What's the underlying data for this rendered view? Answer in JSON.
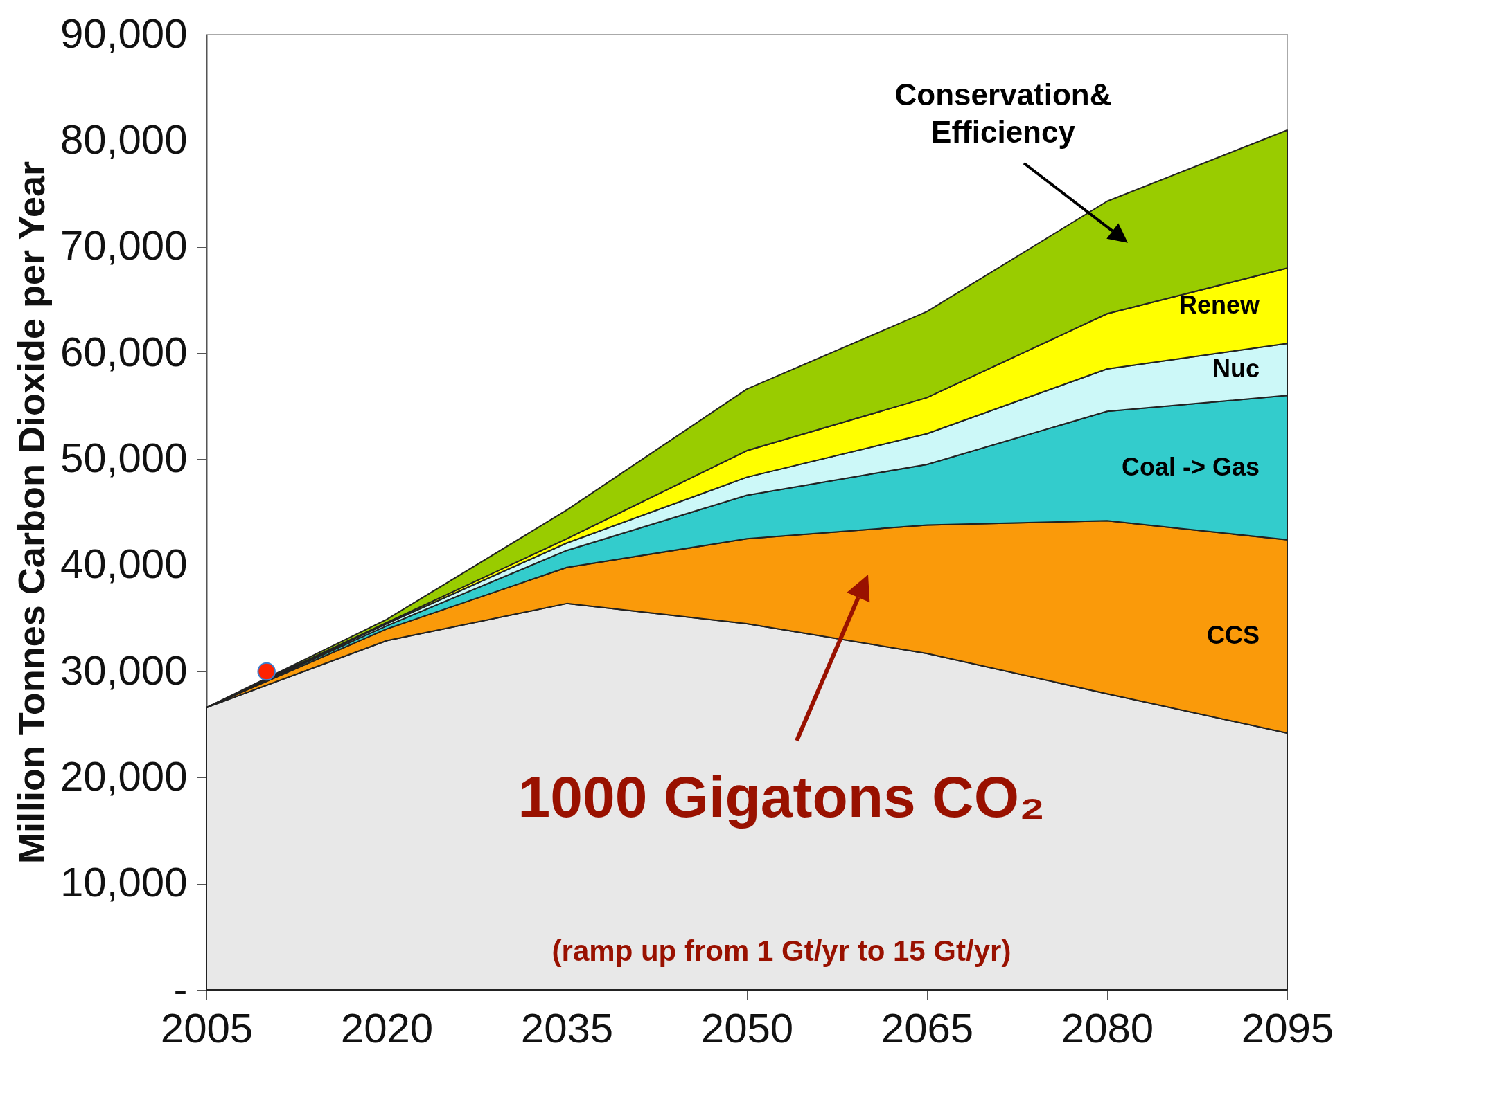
{
  "chart_data": {
    "type": "area",
    "stacked": true,
    "ylabel": "Million Tonnes Carbon Dioxide per Year",
    "x": [
      2005,
      2020,
      2035,
      2050,
      2065,
      2080,
      2095
    ],
    "xlim": [
      2005,
      2095
    ],
    "xticks": [
      2005,
      2020,
      2035,
      2050,
      2065,
      2080,
      2095
    ],
    "ylim": [
      0,
      90000
    ],
    "yticks": [
      {
        "value": 0,
        "label": "-"
      },
      {
        "value": 10000,
        "label": "10,000"
      },
      {
        "value": 20000,
        "label": "20,000"
      },
      {
        "value": 30000,
        "label": "30,000"
      },
      {
        "value": 40000,
        "label": "40,000"
      },
      {
        "value": 50000,
        "label": "50,000"
      },
      {
        "value": 60000,
        "label": "60,000"
      },
      {
        "value": 70000,
        "label": "70,000"
      },
      {
        "value": 80000,
        "label": "80,000"
      },
      {
        "value": 90000,
        "label": "90,000"
      }
    ],
    "grid": false,
    "legend": false,
    "series": [
      {
        "color": "#e8e8e8",
        "values": [
          26600,
          32900,
          36400,
          34500,
          31700,
          27900,
          24200
        ]
      },
      {
        "name": "CCS",
        "color": "#fa9a0a",
        "values": [
          0,
          1100,
          3400,
          8000,
          12100,
          16300,
          18200
        ]
      },
      {
        "name": "Coal -> Gas",
        "color": "#33cccc",
        "values": [
          0,
          300,
          1600,
          4100,
          5700,
          10300,
          13600
        ]
      },
      {
        "name": "Nuc",
        "color": "#ccf8f8",
        "values": [
          0,
          200,
          700,
          1700,
          2900,
          4000,
          4900
        ]
      },
      {
        "name": "Renew",
        "color": "#ffff00",
        "values": [
          0,
          100,
          400,
          2500,
          3400,
          5200,
          7100
        ]
      },
      {
        "name": "Conservation& Efficiency",
        "color": "#99cc00",
        "values": [
          0,
          300,
          2700,
          5800,
          8100,
          10600,
          13000
        ]
      },
      {
        "type": "scatter",
        "x": [
          2010
        ],
        "values": [
          30000
        ],
        "color": "#ff2200",
        "marker": "circle"
      }
    ],
    "annotations": [
      "1000 Gigatons CO₂",
      "(ramp up from 1 Gt/yr to 15 Gt/yr)"
    ]
  }
}
